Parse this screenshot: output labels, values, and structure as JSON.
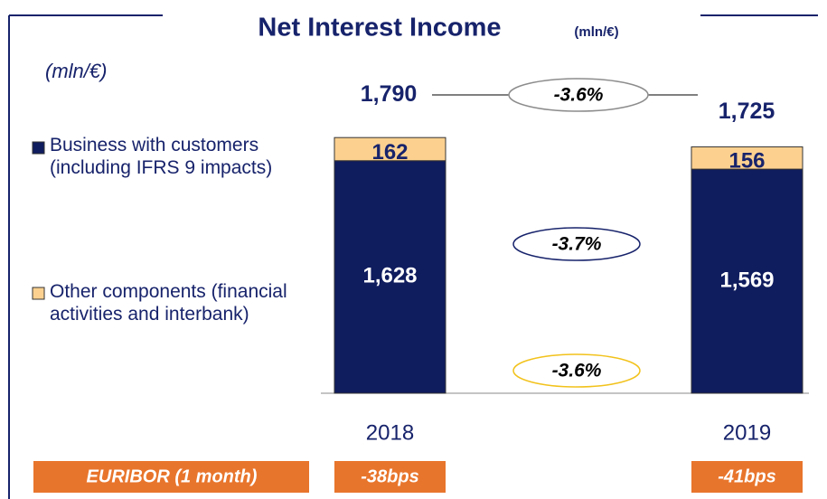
{
  "chart_data": {
    "type": "bar",
    "stacked": true,
    "title": "Net Interest Income",
    "title_unit": "(mln/€)",
    "unit_label": "(mln/€)",
    "categories": [
      "2018",
      "2019"
    ],
    "series": [
      {
        "name": "Business with customers (including IFRS 9 impacts)",
        "color": "#0f1c5e",
        "values": [
          1628,
          1569
        ],
        "value_labels": [
          "1,628",
          "1,569"
        ],
        "label_color": "#ffffff"
      },
      {
        "name": "Other components (financial activities and interbank)",
        "color": "#fcd190",
        "values": [
          162,
          156
        ],
        "label_color": "#17236b"
      }
    ],
    "totals": {
      "values": [
        1790,
        1725
      ],
      "value_labels": [
        "1,790",
        "1,725"
      ]
    },
    "changes": [
      {
        "label": "-3.6%",
        "color": "#8c8c8c"
      },
      {
        "label": "-3.7%",
        "color": "#17236b"
      },
      {
        "label": "-3.6%",
        "color": "#f2c21b"
      }
    ],
    "euribor": {
      "label": "EURIBOR (1 month)",
      "values": [
        "-38bps",
        "-41bps"
      ],
      "color": "#e8752c"
    }
  }
}
